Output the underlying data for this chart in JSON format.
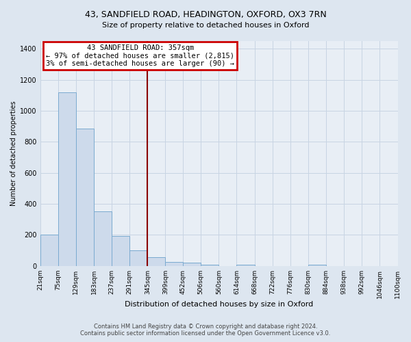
{
  "title": "43, SANDFIELD ROAD, HEADINGTON, OXFORD, OX3 7RN",
  "subtitle": "Size of property relative to detached houses in Oxford",
  "xlabel": "Distribution of detached houses by size in Oxford",
  "ylabel": "Number of detached properties",
  "bin_labels": [
    "21sqm",
    "75sqm",
    "129sqm",
    "183sqm",
    "237sqm",
    "291sqm",
    "345sqm",
    "399sqm",
    "452sqm",
    "506sqm",
    "560sqm",
    "614sqm",
    "668sqm",
    "722sqm",
    "776sqm",
    "830sqm",
    "884sqm",
    "938sqm",
    "992sqm",
    "1046sqm",
    "1100sqm"
  ],
  "bin_edges": [
    21,
    75,
    129,
    183,
    237,
    291,
    345,
    399,
    452,
    506,
    560,
    614,
    668,
    722,
    776,
    830,
    884,
    938,
    992,
    1046,
    1100
  ],
  "bar_heights": [
    200,
    1120,
    885,
    350,
    195,
    100,
    55,
    25,
    20,
    10,
    0,
    10,
    0,
    0,
    0,
    10,
    0,
    0,
    0,
    0
  ],
  "bar_color": "#cddaeb",
  "bar_edgecolor": "#7aaad0",
  "grid_color": "#c8d4e3",
  "vline_x": 357,
  "vline_color": "#8b0000",
  "annotation_title": "43 SANDFIELD ROAD: 357sqm",
  "annotation_line1": "← 97% of detached houses are smaller (2,815)",
  "annotation_line2": "3% of semi-detached houses are larger (90) →",
  "annotation_box_edgecolor": "#cc0000",
  "annotation_box_facecolor": "#ffffff",
  "ylim": [
    0,
    1450
  ],
  "yticks": [
    0,
    200,
    400,
    600,
    800,
    1000,
    1200,
    1400
  ],
  "footer1": "Contains HM Land Registry data © Crown copyright and database right 2024.",
  "footer2": "Contains public sector information licensed under the Open Government Licence v3.0.",
  "bg_color": "#dde6f0",
  "plot_bg_color": "#e8eef5",
  "title_fontsize": 9,
  "subtitle_fontsize": 8,
  "xlabel_fontsize": 8,
  "ylabel_fontsize": 7,
  "tick_fontsize": 6.5,
  "annotation_fontsize": 7.5,
  "footer_fontsize": 6
}
